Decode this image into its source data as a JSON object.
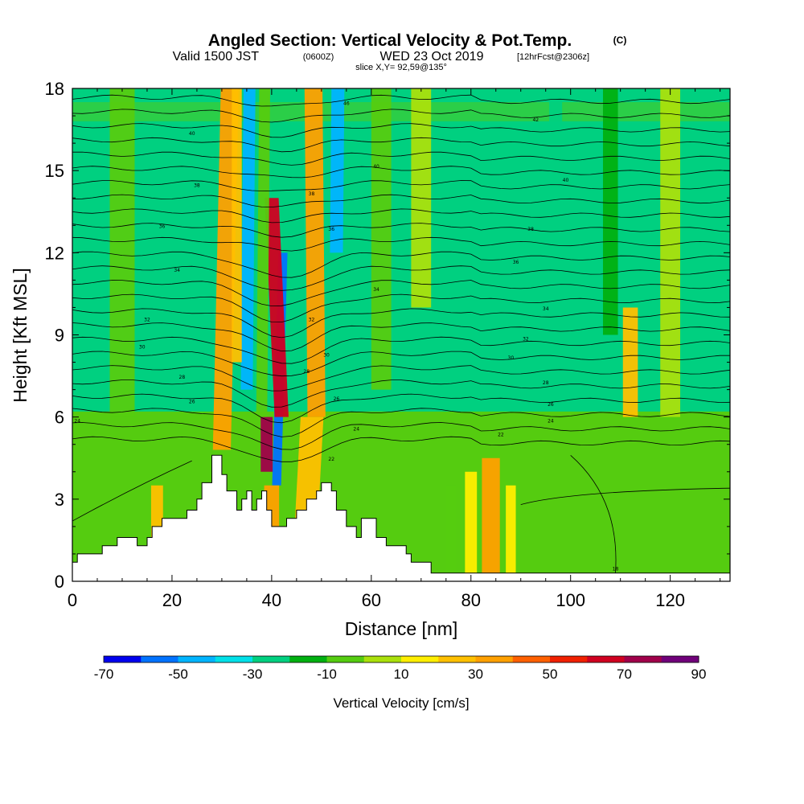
{
  "title": {
    "main": "Angled Section: Vertical Velocity & Pot.Temp.",
    "units_tag": "(C)",
    "valid_prefix": "Valid 1500 JST",
    "valid_utc": "(0600Z)",
    "valid_date": "WED 23 Oct 2019",
    "forecast": "[12hrFcst@2306z]",
    "slice": "slice X,Y= 92,59@135°"
  },
  "chart_data": {
    "type": "heatmap",
    "xlabel": "Distance [nm]",
    "ylabel": "Height [Kft MSL]",
    "xlim": [
      0,
      132
    ],
    "ylim": [
      0,
      18
    ],
    "x_ticks": [
      0,
      20,
      40,
      60,
      80,
      100,
      120
    ],
    "y_ticks": [
      0,
      3,
      6,
      9,
      12,
      15,
      18
    ],
    "colorbar": {
      "title": "Vertical Velocity [cm/s]",
      "labels": [
        "-70",
        "-50",
        "-30",
        "-10",
        "10",
        "30",
        "50",
        "70",
        "90"
      ],
      "min": -70,
      "max": 90,
      "colors": [
        "#0000ee",
        "#0072ff",
        "#00b4ff",
        "#00e0e8",
        "#00d080",
        "#00b010",
        "#55cc10",
        "#aae00c",
        "#ffee00",
        "#ffc000",
        "#ffa000",
        "#ff6000",
        "#f02000",
        "#d00020",
        "#a0004a",
        "#70007a"
      ]
    },
    "background_level": 4,
    "plumes": [
      {
        "x": 30,
        "y0": 4.8,
        "y1": 18,
        "halfwidth": 1.8,
        "tilt": 0.12,
        "level": 10
      },
      {
        "x": 35,
        "y0": 7,
        "y1": 18,
        "halfwidth": 1.2,
        "tilt": 0.05,
        "level": 2
      },
      {
        "x": 41,
        "y0": 3.5,
        "y1": 12,
        "halfwidth": 0.9,
        "tilt": 0.15,
        "level": 1
      },
      {
        "x": 42,
        "y0": 6,
        "y1": 14,
        "halfwidth": 1.4,
        "tilt": -0.25,
        "level": 13
      },
      {
        "x": 39,
        "y0": 4,
        "y1": 6,
        "halfwidth": 1.2,
        "tilt": 0,
        "level": 14
      },
      {
        "x": 47,
        "y0": 2.3,
        "y1": 6,
        "halfwidth": 2.3,
        "tilt": 0.3,
        "level": 9
      },
      {
        "x": 40,
        "y0": 2,
        "y1": 3.5,
        "halfwidth": 1.5,
        "tilt": 0,
        "level": 10
      },
      {
        "x": 49,
        "y0": 6,
        "y1": 18,
        "halfwidth": 1.8,
        "tilt": -0.05,
        "level": 10
      },
      {
        "x": 53,
        "y0": 12,
        "y1": 18,
        "halfwidth": 1.3,
        "tilt": 0.05,
        "level": 2
      },
      {
        "x": 54,
        "y0": 9,
        "y1": 12,
        "halfwidth": 1.5,
        "tilt": 0.08,
        "level": 4
      },
      {
        "x": 38,
        "y0": 6,
        "y1": 18,
        "halfwidth": 1.1,
        "tilt": 0.05,
        "level": 6
      },
      {
        "x": 33,
        "y0": 8,
        "y1": 18,
        "halfwidth": 1,
        "tilt": 0,
        "level": 9
      },
      {
        "x": 17,
        "y0": 0.8,
        "y1": 3.5,
        "halfwidth": 1.2,
        "tilt": 0,
        "level": 9
      },
      {
        "x": 84,
        "y0": 0.3,
        "y1": 4.5,
        "halfwidth": 1.8,
        "tilt": 0,
        "level": 10
      },
      {
        "x": 80,
        "y0": 0.3,
        "y1": 4,
        "halfwidth": 1.2,
        "tilt": 0,
        "level": 8
      },
      {
        "x": 76,
        "y0": 0.3,
        "y1": 3.5,
        "halfwidth": 1,
        "tilt": 0,
        "level": 6
      },
      {
        "x": 88,
        "y0": 0.3,
        "y1": 3.5,
        "halfwidth": 1,
        "tilt": 0,
        "level": 8
      },
      {
        "x": 112,
        "y0": 6,
        "y1": 10,
        "halfwidth": 1.5,
        "tilt": 0,
        "level": 9
      },
      {
        "x": 120,
        "y0": 6,
        "y1": 18,
        "halfwidth": 2,
        "tilt": 0,
        "level": 7
      },
      {
        "x": 10,
        "y0": 6,
        "y1": 18,
        "halfwidth": 2.5,
        "tilt": 0,
        "level": 6
      },
      {
        "x": 62,
        "y0": 7,
        "y1": 18,
        "halfwidth": 2,
        "tilt": 0,
        "level": 6
      },
      {
        "x": 97,
        "y0": 12,
        "y1": 18,
        "halfwidth": 1.3,
        "tilt": 0,
        "level": 4
      },
      {
        "x": 108,
        "y0": 9,
        "y1": 18,
        "halfwidth": 1.5,
        "tilt": 0,
        "level": 5
      },
      {
        "x": 70,
        "y0": 10,
        "y1": 18,
        "halfwidth": 2,
        "tilt": 0,
        "level": 7
      }
    ],
    "terrain": [
      [
        0,
        0.7
      ],
      [
        1,
        0.7
      ],
      [
        1,
        1.0
      ],
      [
        6,
        1.0
      ],
      [
        6,
        1.3
      ],
      [
        9,
        1.3
      ],
      [
        9,
        1.6
      ],
      [
        13,
        1.6
      ],
      [
        13,
        1.3
      ],
      [
        15,
        1.3
      ],
      [
        15,
        1.6
      ],
      [
        16,
        1.6
      ],
      [
        16,
        2.0
      ],
      [
        18,
        2.0
      ],
      [
        18,
        2.3
      ],
      [
        23,
        2.3
      ],
      [
        23,
        2.6
      ],
      [
        25,
        2.6
      ],
      [
        25,
        3.0
      ],
      [
        26,
        3.0
      ],
      [
        26,
        3.6
      ],
      [
        28,
        3.6
      ],
      [
        28,
        4.6
      ],
      [
        30,
        4.6
      ],
      [
        30,
        3.9
      ],
      [
        31,
        3.9
      ],
      [
        31,
        3.3
      ],
      [
        33,
        3.3
      ],
      [
        33,
        2.6
      ],
      [
        34,
        2.6
      ],
      [
        34,
        3.0
      ],
      [
        35,
        3.0
      ],
      [
        35,
        3.3
      ],
      [
        36,
        3.3
      ],
      [
        36,
        2.6
      ],
      [
        37,
        2.6
      ],
      [
        37,
        3.0
      ],
      [
        38,
        3.0
      ],
      [
        38,
        3.3
      ],
      [
        39,
        3.3
      ],
      [
        39,
        2.6
      ],
      [
        40,
        2.6
      ],
      [
        40,
        2.0
      ],
      [
        43,
        2.0
      ],
      [
        43,
        2.3
      ],
      [
        45,
        2.3
      ],
      [
        45,
        2.6
      ],
      [
        47,
        2.6
      ],
      [
        47,
        3.0
      ],
      [
        49,
        3.0
      ],
      [
        49,
        3.3
      ],
      [
        50,
        3.3
      ],
      [
        50,
        3.6
      ],
      [
        52,
        3.6
      ],
      [
        52,
        3.3
      ],
      [
        53,
        3.3
      ],
      [
        53,
        2.6
      ],
      [
        55,
        2.6
      ],
      [
        55,
        2.0
      ],
      [
        57,
        2.0
      ],
      [
        57,
        1.6
      ],
      [
        58,
        1.6
      ],
      [
        58,
        2.3
      ],
      [
        61,
        2.3
      ],
      [
        61,
        1.6
      ],
      [
        63,
        1.6
      ],
      [
        63,
        1.3
      ],
      [
        67,
        1.3
      ],
      [
        67,
        1.0
      ],
      [
        68,
        1.0
      ],
      [
        68,
        0.7
      ],
      [
        72,
        0.7
      ],
      [
        72,
        0.3
      ],
      [
        132,
        0.3
      ],
      [
        132,
        0
      ]
    ],
    "isentropes": {
      "start": 5.2,
      "step": 0.52,
      "count": 25,
      "labels": [
        {
          "x": 1,
          "y": 5.8,
          "text": "24"
        },
        {
          "x": 24,
          "y": 6.5,
          "text": "26"
        },
        {
          "x": 22,
          "y": 7.4,
          "text": "28"
        },
        {
          "x": 14,
          "y": 8.5,
          "text": "30"
        },
        {
          "x": 15,
          "y": 9.5,
          "text": "32"
        },
        {
          "x": 21,
          "y": 11.3,
          "text": "34"
        },
        {
          "x": 18,
          "y": 12.9,
          "text": "36"
        },
        {
          "x": 25,
          "y": 14.4,
          "text": "38"
        },
        {
          "x": 24,
          "y": 16.3,
          "text": "40"
        },
        {
          "x": 55,
          "y": 17.4,
          "text": "46"
        },
        {
          "x": 48,
          "y": 14.1,
          "text": "38"
        },
        {
          "x": 52,
          "y": 12.8,
          "text": "36"
        },
        {
          "x": 48,
          "y": 9.5,
          "text": "32"
        },
        {
          "x": 47,
          "y": 7.6,
          "text": "28"
        },
        {
          "x": 51,
          "y": 8.2,
          "text": "30"
        },
        {
          "x": 53,
          "y": 6.6,
          "text": "26"
        },
        {
          "x": 57,
          "y": 5.5,
          "text": "24"
        },
        {
          "x": 52,
          "y": 4.4,
          "text": "22"
        },
        {
          "x": 61,
          "y": 10.6,
          "text": "34"
        },
        {
          "x": 61,
          "y": 15.1,
          "text": "40"
        },
        {
          "x": 93,
          "y": 16.8,
          "text": "42"
        },
        {
          "x": 99,
          "y": 14.6,
          "text": "40"
        },
        {
          "x": 92,
          "y": 12.8,
          "text": "38"
        },
        {
          "x": 89,
          "y": 11.6,
          "text": "36"
        },
        {
          "x": 95,
          "y": 9.9,
          "text": "34"
        },
        {
          "x": 91,
          "y": 8.8,
          "text": "32"
        },
        {
          "x": 88,
          "y": 8.1,
          "text": "30"
        },
        {
          "x": 95,
          "y": 7.2,
          "text": "28"
        },
        {
          "x": 96,
          "y": 6.4,
          "text": "26"
        },
        {
          "x": 96,
          "y": 5.8,
          "text": "24"
        },
        {
          "x": 86,
          "y": 5.3,
          "text": "22"
        },
        {
          "x": 109,
          "y": 0.4,
          "text": "18"
        }
      ]
    }
  }
}
